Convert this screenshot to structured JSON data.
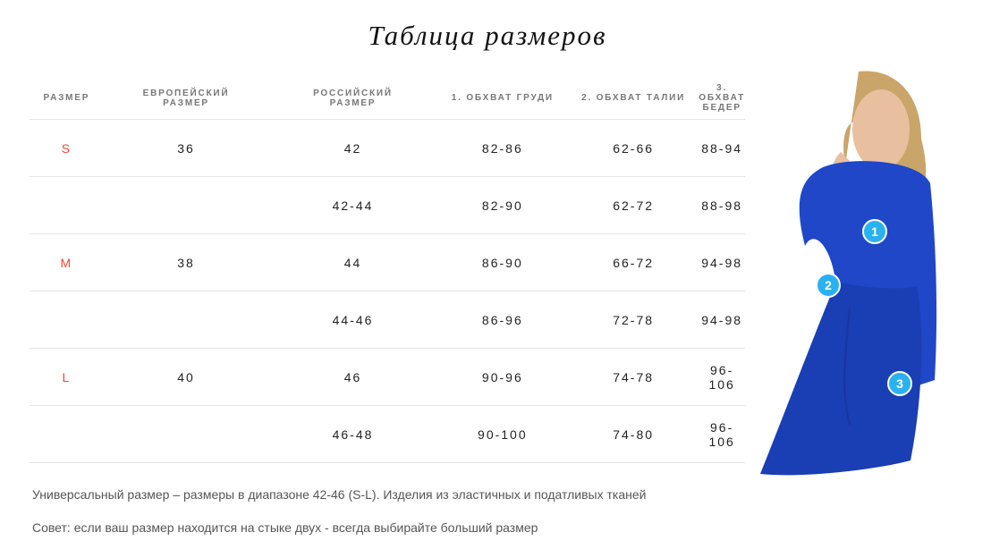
{
  "title": "Таблица размеров",
  "headers": [
    "РАЗМЕР",
    "ЕВРОПЕЙСКИЙ РАЗМЕР",
    "РОССИЙСКИЙ РАЗМЕР",
    "1. ОБХВАТ ГРУДИ",
    "2. ОБХВАТ ТАЛИИ",
    "3. ОБХВАТ БЕДЕР"
  ],
  "rows": [
    [
      "S",
      "36",
      "42",
      "82-86",
      "62-66",
      "88-94"
    ],
    [
      "",
      "",
      "42-44",
      "82-90",
      "62-72",
      "88-98"
    ],
    [
      "M",
      "38",
      "44",
      "86-90",
      "66-72",
      "94-98"
    ],
    [
      "",
      "",
      "44-46",
      "86-96",
      "72-78",
      "94-98"
    ],
    [
      "L",
      "40",
      "46",
      "90-96",
      "74-78",
      "96-106"
    ],
    [
      "",
      "",
      "46-48",
      "90-100",
      "74-80",
      "96-106"
    ]
  ],
  "notes": [
    "Универсальный размер – размеры в диапазоне 42-46 (S-L). Изделия из эластичных и податливых тканей",
    "Совет: если ваш размер находится на стыке двух - всегда выбирайте больший размер"
  ],
  "markers": [
    "1",
    "2",
    "3"
  ],
  "colors": {
    "size_letter": "#f0473d",
    "marker": "#2ab1f0",
    "dress": "#1f47c8"
  }
}
